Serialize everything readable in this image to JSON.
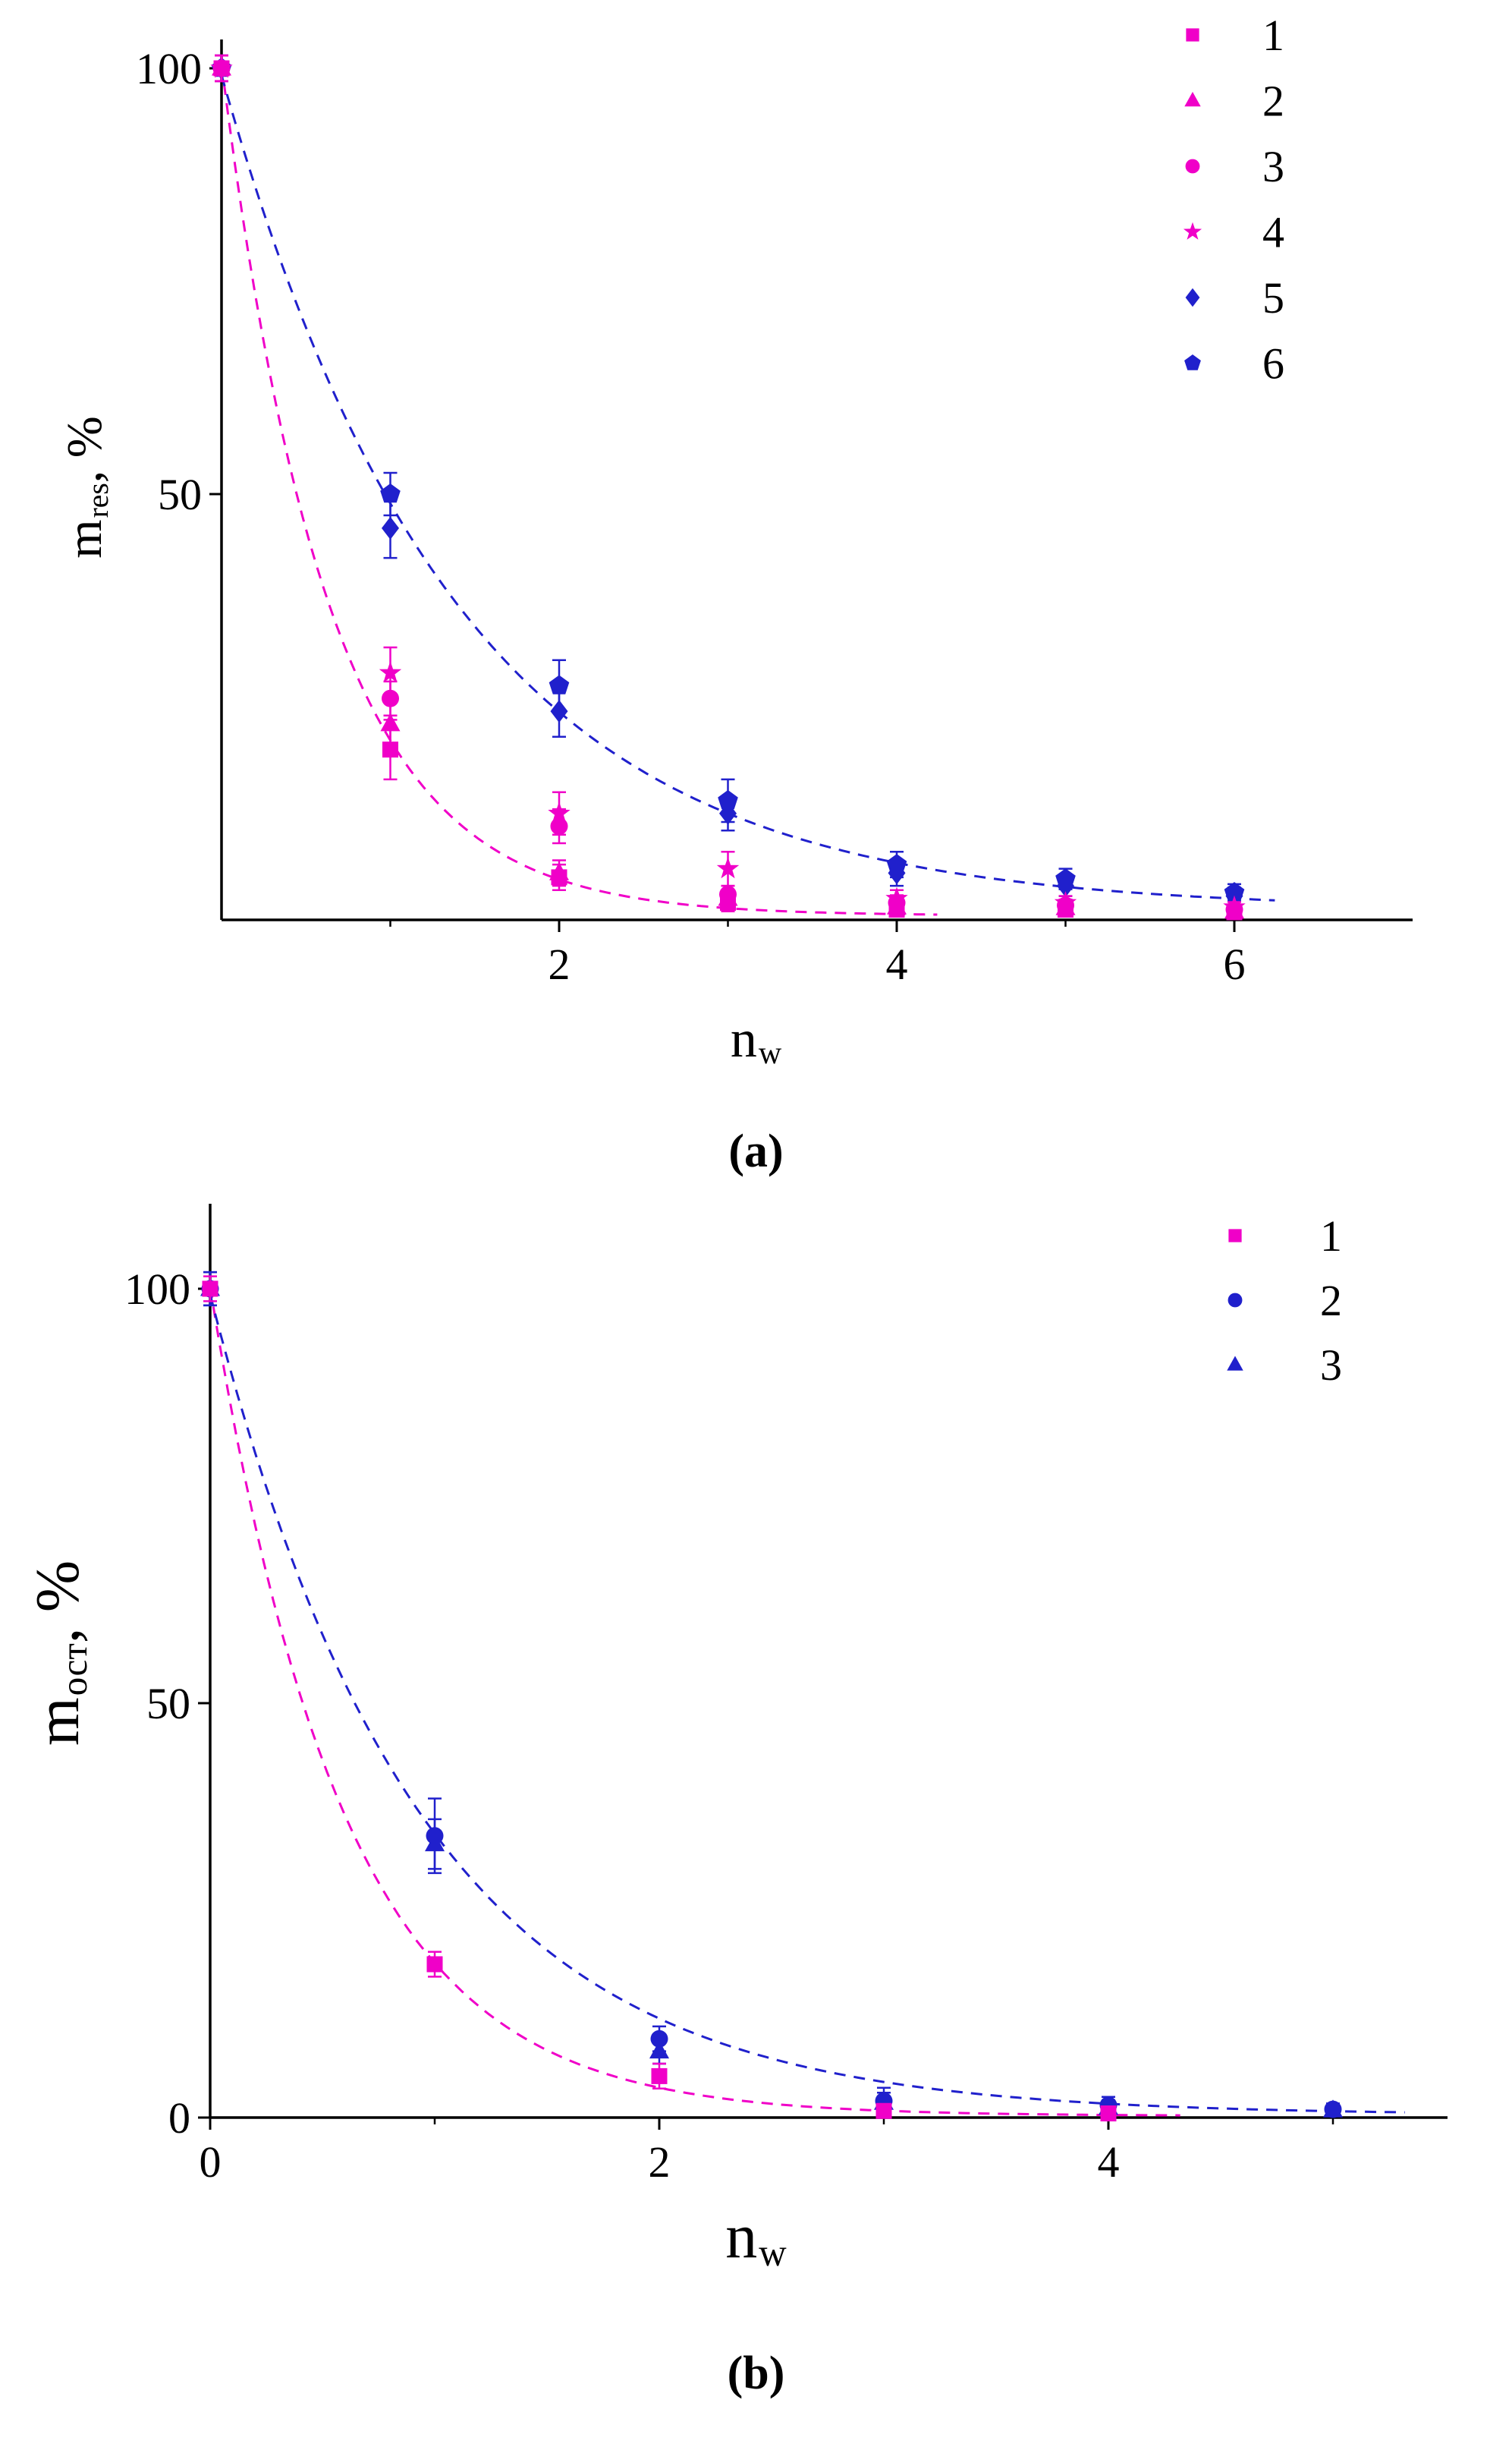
{
  "figure": {
    "background": "#ffffff",
    "text_color": "#000000"
  },
  "palette": {
    "magenta": "#f000c8",
    "blue": "#2020cc",
    "axis": "#000000"
  },
  "chart_data": [
    {
      "id": "a",
      "type": "scatter",
      "caption": "(a)",
      "xlabel": {
        "main": "n",
        "sub": "w"
      },
      "ylabel": {
        "main": "m",
        "sub": "res",
        "suffix": ", %"
      },
      "xlim": [
        0,
        7
      ],
      "ylim": [
        0,
        104
      ],
      "xticks": [
        2,
        4,
        6
      ],
      "yticks": [
        50,
        100
      ],
      "minor_xticks": [
        1,
        2,
        3,
        4,
        5,
        6
      ],
      "grid": false,
      "legend_position": "top-right",
      "series": [
        {
          "name": "1",
          "marker": "square",
          "color": "#f000c8",
          "x": [
            0,
            1,
            2,
            3,
            4,
            5,
            6
          ],
          "y": [
            100,
            20,
            5,
            2,
            1.2,
            1.2,
            0.9
          ],
          "err": [
            1.5,
            3.5,
            1.5,
            1,
            0.8,
            0.7,
            0.6
          ]
        },
        {
          "name": "2",
          "marker": "triangle",
          "color": "#f000c8",
          "x": [
            0,
            1,
            2,
            3,
            4,
            5,
            6
          ],
          "y": [
            100,
            23,
            5.5,
            2.5,
            1.5,
            1.4,
            1
          ],
          "err": [
            1.5,
            2.5,
            1.5,
            1,
            0.8,
            0.7,
            0.6
          ]
        },
        {
          "name": "3",
          "marker": "circle",
          "color": "#f000c8",
          "x": [
            0,
            1,
            2,
            3,
            4,
            5,
            6
          ],
          "y": [
            100,
            26,
            11,
            3,
            2,
            1.7,
            1.2
          ],
          "err": [
            1.5,
            2,
            2,
            1,
            0.9,
            0.7,
            0.6
          ]
        },
        {
          "name": "4",
          "marker": "star",
          "color": "#f000c8",
          "x": [
            0,
            1,
            2,
            3,
            4,
            5,
            6
          ],
          "y": [
            100,
            29,
            12.5,
            6,
            2.5,
            2,
            1.5
          ],
          "err": [
            1.5,
            3,
            2.5,
            2,
            1,
            0.8,
            0.6
          ]
        },
        {
          "name": "5",
          "marker": "diamond",
          "color": "#2020cc",
          "x": [
            0,
            1,
            2,
            3,
            4,
            5,
            6
          ],
          "y": [
            100,
            46,
            24.5,
            12.5,
            5.5,
            4,
            2.8
          ],
          "err": [
            1.5,
            3.5,
            3,
            2,
            1.5,
            1.2,
            1
          ]
        },
        {
          "name": "6",
          "marker": "pentagon",
          "color": "#2020cc",
          "x": [
            0,
            1,
            2,
            3,
            4,
            5,
            6
          ],
          "y": [
            100,
            50,
            27.5,
            14,
            6.5,
            4.8,
            3.2
          ],
          "err": [
            1.5,
            2.5,
            3,
            2.5,
            1.5,
            1.2,
            1
          ]
        }
      ],
      "fits": [
        {
          "name": "magenta",
          "color": "#f000c8",
          "model": "a*exp(-k*x)+c",
          "a": 100,
          "k": 1.58,
          "c": 0.5,
          "x_end": 4.25
        },
        {
          "name": "blue",
          "color": "#2020cc",
          "model": "a*exp(-k*x)+c",
          "a": 98,
          "k": 0.72,
          "c": 1.2,
          "x_end": 6.25
        }
      ]
    },
    {
      "id": "b",
      "type": "scatter",
      "caption": "(b)",
      "xlabel": {
        "main": "n",
        "sub": "w"
      },
      "ylabel": {
        "main": "m",
        "sub": "ост",
        "suffix": ", %"
      },
      "xlim": [
        0,
        5.5
      ],
      "ylim": [
        0,
        104
      ],
      "xticks": [
        0,
        2,
        4
      ],
      "yticks": [
        0,
        50,
        100
      ],
      "minor_xticks": [
        1,
        2,
        3,
        4,
        5
      ],
      "grid": false,
      "legend_position": "top-right",
      "series": [
        {
          "name": "1",
          "marker": "square",
          "color": "#f000c8",
          "x": [
            0,
            1,
            2,
            3,
            4
          ],
          "y": [
            100,
            18.5,
            5,
            0.8,
            0.5
          ],
          "err": [
            1.5,
            1.5,
            1.5,
            0.6,
            0.4
          ]
        },
        {
          "name": "2",
          "marker": "circle",
          "color": "#2020cc",
          "x": [
            0,
            1,
            2,
            3,
            4,
            5
          ],
          "y": [
            100,
            34,
            9.5,
            2,
            1.5,
            1
          ],
          "err": [
            2,
            4.5,
            1.5,
            1.6,
            1,
            0.7
          ]
        },
        {
          "name": "3",
          "marker": "triangle",
          "color": "#2020cc",
          "x": [
            0,
            1,
            2,
            3,
            4,
            5
          ],
          "y": [
            100,
            33,
            8,
            1.8,
            1.2,
            0.9
          ],
          "err": [
            2,
            3,
            1.5,
            1.2,
            0.9,
            0.6
          ]
        }
      ],
      "fits": [
        {
          "name": "magenta",
          "color": "#f000c8",
          "model": "a*exp(-k*x)+c",
          "a": 100,
          "k": 1.69,
          "c": 0.2,
          "x_end": 4.35
        },
        {
          "name": "blue",
          "color": "#2020cc",
          "model": "a*exp(-k*x)+c",
          "a": 99,
          "k": 1.07,
          "c": 0.3,
          "x_end": 5.35
        }
      ]
    }
  ]
}
